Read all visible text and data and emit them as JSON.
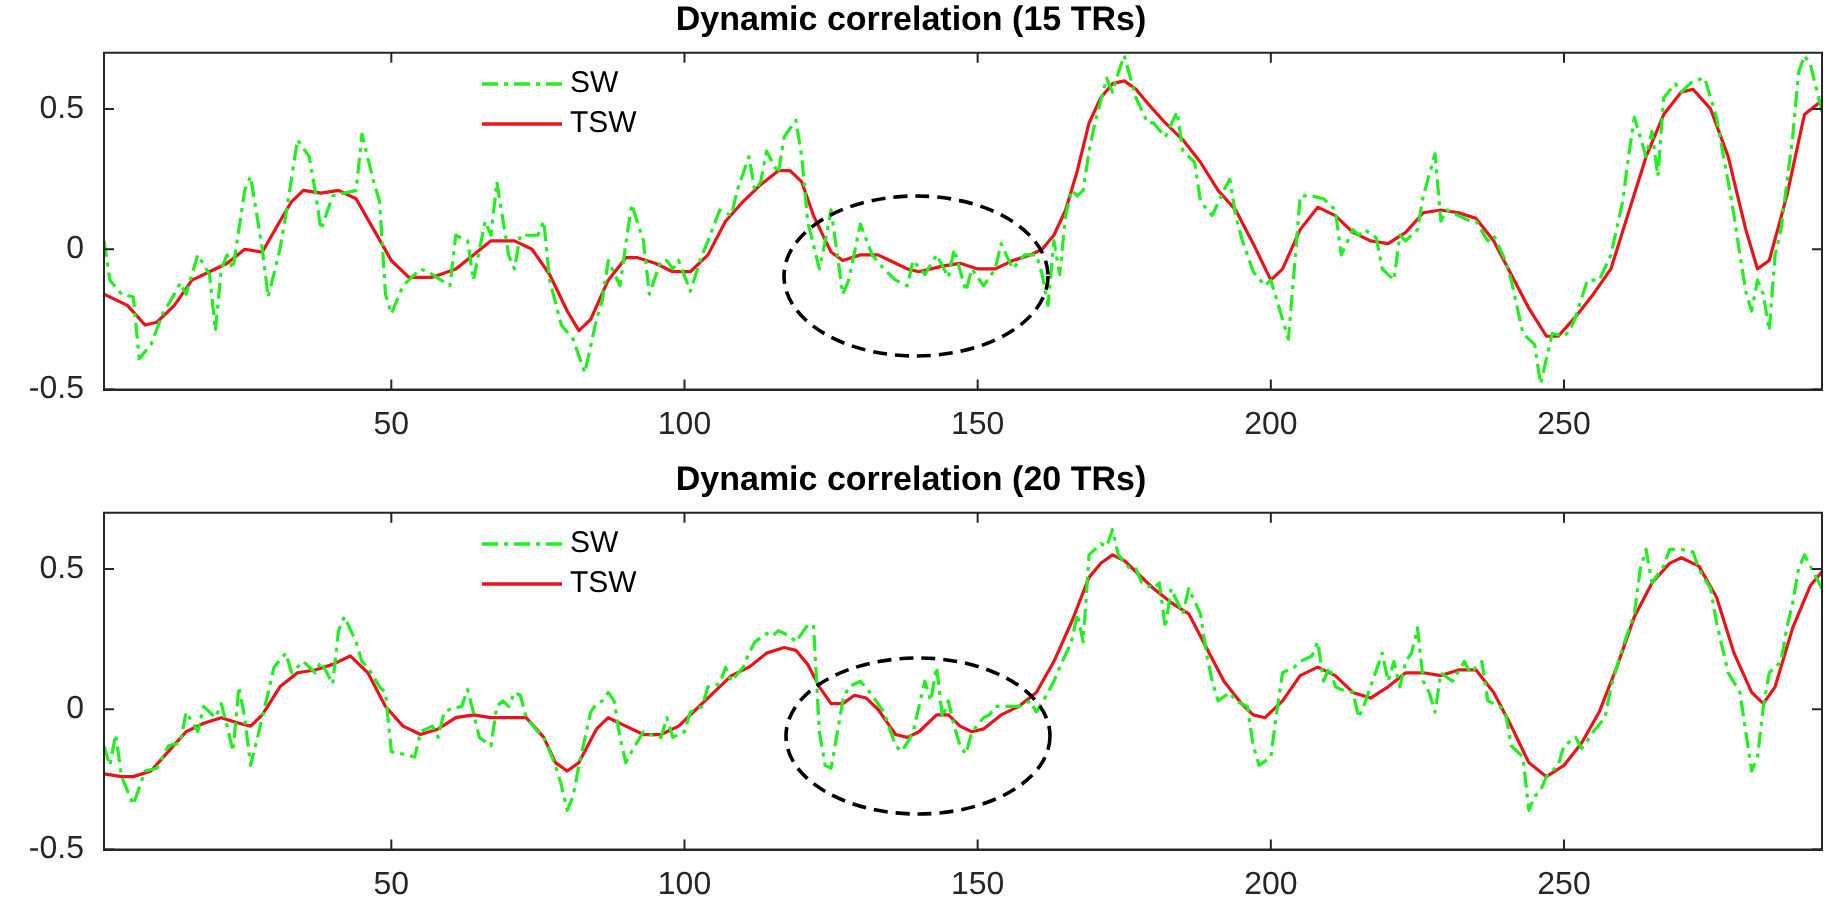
{
  "chart_data": [
    {
      "type": "line",
      "title": "Dynamic correlation (15 TRs)",
      "xlim": [
        1,
        294
      ],
      "xticks": [
        50,
        100,
        150,
        200,
        250
      ],
      "ylim": [
        -0.5,
        0.7
      ],
      "yticks": [
        -0.5,
        0,
        0.5
      ],
      "grid": false,
      "legend": "top left",
      "marker": "none",
      "series": [
        {
          "name": "SW",
          "color": "#22ee22",
          "line_style": "dashed",
          "x": [
            1,
            2,
            4,
            6,
            7,
            9,
            11,
            13,
            14,
            15,
            17,
            19,
            20,
            21,
            22,
            23,
            25,
            26,
            28,
            29,
            31,
            32,
            34,
            36,
            37,
            38,
            40,
            42,
            44,
            45,
            47,
            48,
            49,
            50,
            52,
            55,
            57,
            60,
            61,
            63,
            64,
            66,
            67,
            68,
            70,
            71,
            72,
            75,
            76,
            77,
            79,
            81,
            83,
            85,
            86,
            87,
            89,
            90,
            91,
            93,
            94,
            96,
            97,
            98,
            99,
            101,
            103,
            104,
            106,
            108,
            109,
            111,
            112,
            113,
            114,
            116,
            117,
            119,
            120,
            121,
            123,
            124,
            125,
            127,
            128,
            130,
            132,
            134,
            136,
            138,
            139,
            141,
            143,
            145,
            146,
            148,
            149,
            151,
            153,
            154,
            156,
            158,
            160,
            161,
            162,
            163,
            164,
            165,
            166,
            167,
            168,
            169,
            170,
            172,
            173,
            174,
            175,
            177,
            179,
            180,
            182,
            184,
            185,
            187,
            188,
            190,
            192,
            193,
            194,
            195,
            197,
            199,
            200,
            202,
            203,
            204,
            205,
            207,
            209,
            211,
            212,
            214,
            215,
            216,
            218,
            219,
            221,
            222,
            223,
            225,
            226,
            228,
            229,
            230,
            232,
            234,
            235,
            237,
            238,
            240,
            241,
            243,
            245,
            246,
            247,
            248,
            250,
            251,
            252,
            254,
            256,
            258,
            260,
            261,
            262,
            263,
            264,
            265,
            266,
            267,
            269,
            270,
            272,
            274,
            276,
            278,
            279,
            280,
            281,
            282,
            283,
            284,
            285,
            286,
            287,
            289,
            290,
            291,
            292,
            294
          ],
          "values": [
            0.03,
            -0.11,
            -0.16,
            -0.17,
            -0.39,
            -0.34,
            -0.23,
            -0.16,
            -0.12,
            -0.16,
            -0.02,
            -0.09,
            -0.29,
            -0.07,
            -0.02,
            -0.07,
            0.21,
            0.26,
            0.0,
            -0.17,
            0.0,
            0.12,
            0.39,
            0.33,
            0.21,
            0.07,
            0.19,
            0.2,
            0.21,
            0.41,
            0.24,
            0.17,
            -0.16,
            -0.23,
            -0.13,
            -0.07,
            -0.09,
            -0.13,
            0.05,
            0.03,
            -0.11,
            0.1,
            0.05,
            0.24,
            -0.02,
            -0.07,
            0.05,
            0.05,
            0.1,
            -0.11,
            -0.27,
            -0.32,
            -0.44,
            -0.25,
            -0.18,
            -0.04,
            -0.13,
            0.02,
            0.16,
            0.03,
            -0.16,
            -0.04,
            -0.04,
            -0.07,
            -0.04,
            -0.15,
            -0.02,
            0.03,
            0.14,
            0.12,
            0.21,
            0.33,
            0.21,
            0.24,
            0.35,
            0.27,
            0.4,
            0.46,
            0.33,
            0.1,
            -0.07,
            0.03,
            0.14,
            -0.16,
            -0.11,
            0.09,
            -0.02,
            -0.07,
            -0.11,
            -0.13,
            -0.04,
            -0.09,
            -0.02,
            -0.1,
            0.0,
            -0.15,
            -0.07,
            -0.13,
            -0.07,
            0.02,
            -0.07,
            -0.02,
            -0.02,
            -0.09,
            -0.2,
            0.03,
            -0.09,
            0.12,
            0.21,
            0.19,
            0.21,
            0.35,
            0.45,
            0.61,
            0.56,
            0.63,
            0.69,
            0.54,
            0.45,
            0.45,
            0.4,
            0.49,
            0.35,
            0.31,
            0.17,
            0.12,
            0.21,
            0.25,
            0.12,
            0.04,
            -0.08,
            -0.13,
            -0.11,
            -0.25,
            -0.32,
            -0.07,
            0.19,
            0.19,
            0.18,
            0.14,
            -0.02,
            0.07,
            0.05,
            0.07,
            0.04,
            -0.07,
            -0.11,
            0.05,
            0.03,
            0.07,
            0.19,
            0.34,
            0.1,
            0.14,
            0.12,
            0.1,
            0.1,
            0.03,
            0.05,
            -0.04,
            -0.11,
            -0.3,
            -0.34,
            -0.48,
            -0.39,
            -0.3,
            -0.31,
            -0.29,
            -0.24,
            -0.11,
            -0.11,
            -0.02,
            0.17,
            0.33,
            0.47,
            0.4,
            0.33,
            0.42,
            0.26,
            0.54,
            0.59,
            0.56,
            0.6,
            0.61,
            0.47,
            0.24,
            0.12,
            -0.02,
            -0.15,
            -0.22,
            -0.11,
            -0.16,
            -0.29,
            -0.02,
            0.07,
            0.4,
            0.63,
            0.69,
            0.66,
            0.49
          ]
        },
        {
          "name": "TSW",
          "color": "#e8141a",
          "line_style": "solid",
          "x": [
            1,
            5,
            8,
            10,
            13,
            16,
            19,
            22,
            25,
            28,
            31,
            33,
            35,
            38,
            41,
            44,
            47,
            50,
            53,
            57,
            61,
            64,
            67,
            71,
            74,
            77,
            80,
            82,
            84,
            87,
            90,
            92,
            95,
            98,
            101,
            104,
            107,
            110,
            113,
            116,
            118,
            120,
            122,
            125,
            127,
            130,
            133,
            136,
            138,
            140,
            144,
            147,
            150,
            153,
            156,
            159,
            161,
            163,
            165,
            167,
            169,
            171,
            173,
            175,
            177,
            179,
            182,
            185,
            188,
            191,
            194,
            197,
            200,
            202,
            205,
            208,
            211,
            214,
            217,
            220,
            223,
            226,
            229,
            232,
            235,
            238,
            241,
            244,
            247,
            249,
            252,
            255,
            258,
            261,
            264,
            267,
            270,
            272,
            275,
            278,
            281,
            283,
            285,
            288,
            291,
            294
          ],
          "values": [
            -0.16,
            -0.2,
            -0.27,
            -0.26,
            -0.2,
            -0.11,
            -0.08,
            -0.05,
            0.0,
            -0.01,
            0.1,
            0.17,
            0.21,
            0.2,
            0.21,
            0.18,
            0.07,
            -0.04,
            -0.1,
            -0.1,
            -0.07,
            -0.02,
            0.03,
            0.03,
            0.0,
            -0.09,
            -0.22,
            -0.29,
            -0.25,
            -0.11,
            -0.03,
            -0.03,
            -0.05,
            -0.08,
            -0.08,
            -0.02,
            0.1,
            0.17,
            0.23,
            0.28,
            0.28,
            0.24,
            0.12,
            -0.01,
            -0.04,
            -0.02,
            -0.02,
            -0.05,
            -0.07,
            -0.08,
            -0.06,
            -0.05,
            -0.07,
            -0.07,
            -0.04,
            -0.02,
            0.0,
            0.05,
            0.14,
            0.28,
            0.45,
            0.54,
            0.59,
            0.6,
            0.57,
            0.52,
            0.45,
            0.39,
            0.31,
            0.21,
            0.14,
            0.02,
            -0.11,
            -0.07,
            0.07,
            0.15,
            0.12,
            0.06,
            0.03,
            0.02,
            0.06,
            0.13,
            0.14,
            0.13,
            0.11,
            0.03,
            -0.09,
            -0.21,
            -0.31,
            -0.31,
            -0.24,
            -0.16,
            -0.07,
            0.13,
            0.33,
            0.48,
            0.56,
            0.57,
            0.5,
            0.33,
            0.07,
            -0.07,
            -0.04,
            0.19,
            0.48,
            0.53
          ]
        }
      ]
    },
    {
      "type": "line",
      "title": "Dynamic correlation (20 TRs)",
      "xlim": [
        1,
        294
      ],
      "xticks": [
        50,
        100,
        150,
        200,
        250
      ],
      "ylim": [
        -0.5,
        0.7
      ],
      "yticks": [
        -0.5,
        0,
        0.5
      ],
      "grid": false,
      "legend": "top left",
      "marker": "none",
      "series": [
        {
          "name": "SW",
          "color": "#22ee22",
          "line_style": "dashed",
          "x": [
            1,
            2,
            3,
            4,
            6,
            8,
            10,
            12,
            14,
            15,
            17,
            18,
            20,
            21,
            22,
            23,
            24,
            25,
            26,
            28,
            30,
            32,
            33,
            35,
            37,
            38,
            40,
            41,
            42,
            44,
            45,
            46,
            48,
            49,
            50,
            52,
            54,
            55,
            57,
            58,
            59,
            60,
            62,
            63,
            64,
            65,
            67,
            68,
            69,
            70,
            71,
            72,
            73,
            75,
            76,
            78,
            79,
            80,
            81,
            82,
            84,
            85,
            86,
            87,
            88,
            89,
            90,
            91,
            93,
            94,
            96,
            97,
            98,
            100,
            101,
            103,
            104,
            106,
            107,
            108,
            110,
            111,
            112,
            114,
            115,
            116,
            118,
            119,
            121,
            122,
            123,
            124,
            125,
            127,
            128,
            130,
            132,
            134,
            136,
            137,
            138,
            139,
            141,
            142,
            143,
            144,
            145,
            146,
            147,
            148,
            149,
            151,
            152,
            153,
            155,
            157,
            159,
            160,
            162,
            163,
            164,
            166,
            167,
            168,
            169,
            171,
            172,
            173,
            174,
            176,
            177,
            178,
            180,
            181,
            182,
            183,
            185,
            186,
            188,
            189,
            190,
            191,
            193,
            194,
            196,
            197,
            198,
            200,
            201,
            202,
            204,
            205,
            207,
            208,
            209,
            210,
            211,
            212,
            214,
            215,
            216,
            217,
            219,
            220,
            221,
            222,
            223,
            224,
            225,
            226,
            227,
            228,
            229,
            231,
            233,
            234,
            236,
            237,
            239,
            240,
            241,
            243,
            244,
            245,
            246,
            247,
            249,
            250,
            252,
            253,
            255,
            257,
            258,
            260,
            262,
            263,
            264,
            265,
            267,
            268,
            270,
            272,
            273,
            275,
            276,
            278,
            280,
            281,
            282,
            283,
            284,
            285,
            287,
            288,
            289,
            290,
            291,
            292,
            294
          ],
          "values": [
            -0.13,
            -0.2,
            -0.09,
            -0.24,
            -0.34,
            -0.22,
            -0.21,
            -0.13,
            -0.12,
            -0.01,
            -0.08,
            0.01,
            -0.03,
            0.02,
            -0.06,
            -0.15,
            0.08,
            -0.03,
            -0.2,
            -0.03,
            0.15,
            0.2,
            0.13,
            0.17,
            0.13,
            0.17,
            0.09,
            0.28,
            0.33,
            0.24,
            0.17,
            0.15,
            0.08,
            0.06,
            -0.15,
            -0.16,
            -0.17,
            -0.08,
            -0.06,
            -0.1,
            -0.01,
            0.0,
            0.01,
            0.07,
            -0.01,
            -0.1,
            -0.13,
            0.01,
            0.03,
            0.01,
            0.06,
            0.05,
            -0.03,
            -0.08,
            -0.1,
            -0.2,
            -0.27,
            -0.36,
            -0.31,
            -0.2,
            -0.01,
            0.02,
            0.03,
            0.06,
            0.03,
            -0.1,
            -0.19,
            -0.15,
            -0.08,
            -0.09,
            -0.1,
            -0.03,
            -0.1,
            -0.08,
            -0.01,
            0.01,
            0.08,
            0.09,
            0.15,
            0.1,
            0.15,
            0.2,
            0.24,
            0.27,
            0.26,
            0.28,
            0.26,
            0.24,
            0.3,
            0.3,
            -0.08,
            -0.2,
            -0.21,
            0.03,
            0.08,
            0.1,
            0.05,
            -0.01,
            -0.13,
            -0.15,
            -0.12,
            -0.08,
            0.1,
            0.03,
            0.15,
            -0.03,
            0.03,
            -0.06,
            -0.13,
            -0.16,
            -0.08,
            -0.03,
            -0.02,
            0.01,
            0.01,
            0.01,
            0.03,
            -0.01,
            0.06,
            0.1,
            0.15,
            0.24,
            0.34,
            0.24,
            0.55,
            0.59,
            0.58,
            0.64,
            0.55,
            0.5,
            0.5,
            0.45,
            0.43,
            0.45,
            0.29,
            0.43,
            0.34,
            0.43,
            0.34,
            0.2,
            0.1,
            0.03,
            0.06,
            0.03,
            0.01,
            -0.13,
            -0.2,
            -0.17,
            -0.01,
            0.13,
            0.15,
            0.17,
            0.19,
            0.24,
            0.1,
            0.15,
            0.08,
            0.07,
            0.06,
            -0.03,
            0.02,
            0.08,
            0.2,
            0.1,
            0.17,
            0.08,
            0.17,
            0.2,
            0.29,
            0.1,
            0.06,
            -0.01,
            0.13,
            0.1,
            0.17,
            0.13,
            0.17,
            0.03,
            0.01,
            -0.01,
            -0.13,
            -0.17,
            -0.36,
            -0.31,
            -0.29,
            -0.24,
            -0.2,
            -0.13,
            -0.1,
            -0.14,
            -0.08,
            -0.03,
            0.08,
            0.22,
            0.34,
            0.5,
            0.57,
            0.45,
            0.51,
            0.57,
            0.57,
            0.56,
            0.5,
            0.43,
            0.31,
            0.13,
            0.06,
            -0.08,
            -0.22,
            -0.17,
            0.01,
            0.13,
            0.17,
            0.29,
            0.38,
            0.5,
            0.55,
            0.51,
            0.43
          ]
        },
        {
          "name": "TSW",
          "color": "#e8141a",
          "line_style": "solid",
          "x": [
            1,
            4,
            6,
            9,
            12,
            15,
            18,
            21,
            24,
            26,
            28,
            31,
            34,
            37,
            40,
            43,
            46,
            49,
            52,
            55,
            58,
            61,
            64,
            67,
            70,
            73,
            76,
            78,
            80,
            82,
            85,
            87,
            90,
            93,
            96,
            99,
            102,
            105,
            108,
            111,
            114,
            117,
            119,
            121,
            123,
            125,
            127,
            129,
            131,
            133,
            135,
            136,
            138,
            140,
            143,
            145,
            147,
            149,
            151,
            154,
            157,
            160,
            163,
            166,
            169,
            171,
            173,
            175,
            177,
            180,
            183,
            186,
            189,
            192,
            195,
            197,
            199,
            202,
            205,
            208,
            211,
            214,
            217,
            220,
            223,
            226,
            229,
            232,
            235,
            238,
            241,
            244,
            247,
            250,
            253,
            256,
            259,
            262,
            265,
            268,
            270,
            273,
            276,
            279,
            282,
            284,
            286,
            289,
            292,
            294
          ],
          "values": [
            -0.23,
            -0.24,
            -0.24,
            -0.22,
            -0.15,
            -0.08,
            -0.05,
            -0.03,
            -0.05,
            -0.06,
            -0.02,
            0.08,
            0.13,
            0.14,
            0.16,
            0.19,
            0.13,
            0.01,
            -0.06,
            -0.09,
            -0.07,
            -0.03,
            -0.02,
            -0.03,
            -0.03,
            -0.03,
            -0.1,
            -0.19,
            -0.22,
            -0.19,
            -0.07,
            -0.03,
            -0.06,
            -0.09,
            -0.09,
            -0.06,
            0.0,
            0.06,
            0.12,
            0.15,
            0.2,
            0.22,
            0.21,
            0.16,
            0.08,
            0.02,
            0.02,
            0.05,
            0.04,
            0.0,
            -0.06,
            -0.09,
            -0.1,
            -0.08,
            -0.02,
            -0.02,
            -0.06,
            -0.08,
            -0.07,
            -0.02,
            0.01,
            0.06,
            0.17,
            0.31,
            0.47,
            0.52,
            0.55,
            0.53,
            0.49,
            0.43,
            0.38,
            0.34,
            0.22,
            0.1,
            0.02,
            -0.02,
            -0.03,
            0.03,
            0.12,
            0.15,
            0.12,
            0.06,
            0.04,
            0.08,
            0.13,
            0.13,
            0.12,
            0.14,
            0.14,
            0.06,
            -0.06,
            -0.19,
            -0.24,
            -0.2,
            -0.12,
            -0.01,
            0.15,
            0.33,
            0.45,
            0.52,
            0.54,
            0.51,
            0.4,
            0.2,
            0.06,
            0.02,
            0.08,
            0.29,
            0.44,
            0.49
          ]
        }
      ]
    }
  ]
}
